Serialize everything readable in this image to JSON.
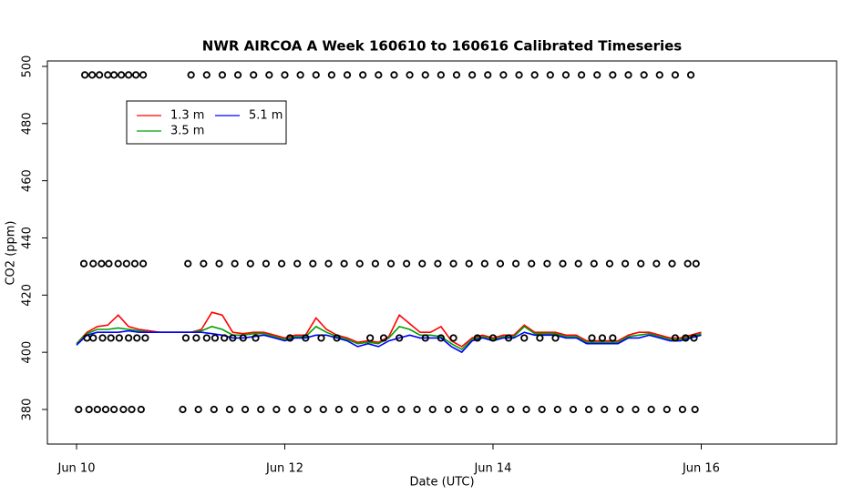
{
  "chart_data": {
    "type": "line",
    "title": "NWR AIRCOA A  Week 160610 to 160616  Calibrated Timeseries",
    "x_label": "Date (UTC)",
    "y_label": "CO2 (ppm)",
    "xlim": [
      -0.28,
      7.3
    ],
    "ylim": [
      367.9,
      501.9
    ],
    "xticks": [
      {
        "value": 0,
        "label": "Jun 10"
      },
      {
        "value": 2,
        "label": "Jun 12"
      },
      {
        "value": 4,
        "label": "Jun 14"
      },
      {
        "value": 6,
        "label": "Jun 16"
      }
    ],
    "yticks": [
      380,
      400,
      420,
      440,
      460,
      480,
      500
    ],
    "legend": "top-left",
    "x": [
      0,
      0.1,
      0.2,
      0.3,
      0.4,
      0.5,
      0.6,
      0.7,
      0.8,
      0.9,
      1,
      1.1,
      1.2,
      1.3,
      1.4,
      1.5,
      1.6,
      1.7,
      1.8,
      1.9,
      2,
      2.1,
      2.2,
      2.3,
      2.4,
      2.5,
      2.6,
      2.7,
      2.8,
      2.9,
      3,
      3.1,
      3.2,
      3.3,
      3.4,
      3.5,
      3.6,
      3.7,
      3.8,
      3.9,
      4,
      4.1,
      4.2,
      4.3,
      4.4,
      4.5,
      4.6,
      4.7,
      4.8,
      4.9,
      5,
      5.1,
      5.2,
      5.3,
      5.4,
      5.5,
      5.6,
      5.7,
      5.8,
      5.9,
      6
    ],
    "series": [
      {
        "name": "1.3 m",
        "color": "#ff0000",
        "values": [
          403,
          407,
          409,
          409.5,
          413,
          409,
          408,
          407.5,
          407,
          407,
          407,
          407,
          408,
          414,
          413,
          407,
          406.5,
          407,
          407,
          406,
          405,
          406,
          406,
          412,
          408,
          406,
          405,
          403.5,
          404,
          403.5,
          405.5,
          413,
          410,
          407,
          407,
          409,
          404,
          402,
          405,
          406,
          405,
          406,
          406,
          409.5,
          407,
          407,
          407,
          406,
          406,
          404,
          404,
          404,
          404,
          406,
          407,
          407,
          406,
          405,
          405,
          406,
          407
        ]
      },
      {
        "name": "3.5 m",
        "color": "#00a000",
        "values": [
          403,
          406.5,
          408,
          408,
          408.5,
          408,
          407.5,
          407,
          407,
          407,
          407,
          407,
          407.5,
          409,
          408,
          406,
          406,
          406.5,
          406.5,
          405.5,
          404.5,
          405.5,
          405.5,
          409,
          407,
          405.5,
          404.5,
          403,
          403.5,
          403,
          405,
          409,
          408,
          406,
          406,
          405.5,
          403,
          401,
          404.5,
          405.5,
          404.5,
          405.5,
          405.5,
          409,
          406.5,
          406.5,
          406.5,
          405.5,
          405.5,
          403.5,
          403.5,
          403.5,
          403.5,
          405.5,
          406,
          406.5,
          405.5,
          404.5,
          404.5,
          405.5,
          406.5
        ]
      },
      {
        "name": "5.1 m",
        "color": "#0000ff",
        "values": [
          402.5,
          406,
          407,
          407,
          407,
          407.5,
          407,
          407,
          407,
          407,
          407,
          407,
          407,
          406.5,
          406,
          405,
          405,
          405.5,
          406,
          405,
          404,
          405,
          405,
          406,
          406,
          405,
          404,
          402,
          403,
          402,
          404,
          405,
          406,
          405,
          405,
          405,
          402,
          400,
          404,
          405,
          404,
          405,
          405,
          407,
          406,
          406,
          406,
          405,
          405,
          403,
          403,
          403,
          403,
          405,
          405,
          406,
          405,
          404,
          404,
          405,
          406
        ]
      }
    ],
    "calibration": [
      {
        "y": 497,
        "x": [
          0.08,
          0.15,
          0.22,
          0.3,
          0.36,
          0.43,
          0.5,
          0.57,
          0.64,
          1.1,
          1.25,
          1.4,
          1.55,
          1.7,
          1.85,
          2,
          2.15,
          2.3,
          2.45,
          2.6,
          2.75,
          2.9,
          3.05,
          3.2,
          3.35,
          3.5,
          3.65,
          3.8,
          3.95,
          4.1,
          4.25,
          4.4,
          4.55,
          4.7,
          4.85,
          5,
          5.15,
          5.3,
          5.45,
          5.6,
          5.75,
          5.9
        ]
      },
      {
        "y": 431,
        "x": [
          0.07,
          0.16,
          0.24,
          0.31,
          0.4,
          0.48,
          0.56,
          0.64,
          1.07,
          1.22,
          1.37,
          1.52,
          1.67,
          1.82,
          1.97,
          2.12,
          2.27,
          2.42,
          2.57,
          2.72,
          2.87,
          3.02,
          3.17,
          3.32,
          3.47,
          3.62,
          3.77,
          3.92,
          4.07,
          4.22,
          4.37,
          4.52,
          4.67,
          4.82,
          4.97,
          5.12,
          5.27,
          5.42,
          5.57,
          5.72,
          5.87,
          5.95
        ]
      },
      {
        "y": 405,
        "x": [
          0.1,
          0.16,
          0.25,
          0.33,
          0.41,
          0.5,
          0.58,
          0.66,
          1.05,
          1.15,
          1.25,
          1.33,
          1.42,
          1.5,
          1.6,
          1.72,
          2.05,
          2.2,
          2.35,
          2.5,
          2.82,
          2.95,
          3.1,
          3.35,
          3.5,
          3.62,
          3.85,
          4,
          4.15,
          4.3,
          4.45,
          4.6,
          4.95,
          5.05,
          5.15,
          5.75,
          5.85,
          5.93
        ]
      },
      {
        "y": 380,
        "x": [
          0.02,
          0.12,
          0.2,
          0.28,
          0.36,
          0.45,
          0.53,
          0.62,
          1.02,
          1.17,
          1.32,
          1.47,
          1.62,
          1.77,
          1.92,
          2.07,
          2.22,
          2.37,
          2.52,
          2.67,
          2.82,
          2.97,
          3.12,
          3.27,
          3.42,
          3.57,
          3.72,
          3.87,
          4.02,
          4.17,
          4.32,
          4.47,
          4.62,
          4.77,
          4.92,
          5.07,
          5.22,
          5.37,
          5.52,
          5.67,
          5.82,
          5.94
        ]
      }
    ]
  }
}
